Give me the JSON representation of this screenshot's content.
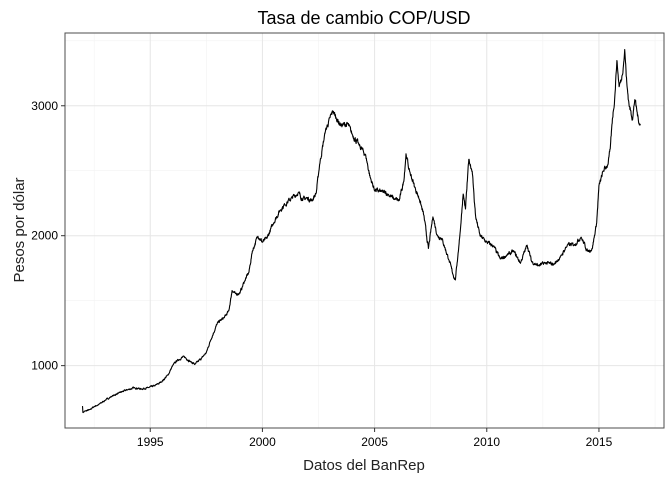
{
  "chart_data": {
    "type": "line",
    "title": "Tasa de cambio COP/USD",
    "xlabel": "Datos del BanRep",
    "ylabel": "Pesos por dólar",
    "xlim": [
      1991.2,
      2017.9
    ],
    "ylim": [
      520,
      3560
    ],
    "x_ticks": [
      1995,
      2000,
      2005,
      2010,
      2015
    ],
    "x_tick_labels": [
      "1995",
      "2000",
      "2005",
      "2010",
      "2015"
    ],
    "y_ticks": [
      1000,
      2000,
      3000
    ],
    "y_tick_labels": [
      "1000",
      "2000",
      "3000"
    ],
    "grid": true,
    "legend": "none",
    "colors": {
      "line": "#000000",
      "grid_major": "#e6e6e6",
      "grid_minor": "#f2f2f2",
      "panel_border": "#4d4d4d"
    },
    "series": [
      {
        "values": [
          {
            "x": 1991.98,
            "y": 690
          },
          {
            "x": 1992.0,
            "y": 640
          },
          {
            "x": 1992.1,
            "y": 650
          },
          {
            "x": 1992.3,
            "y": 660
          },
          {
            "x": 1992.5,
            "y": 685
          },
          {
            "x": 1992.7,
            "y": 700
          },
          {
            "x": 1993.0,
            "y": 735
          },
          {
            "x": 1993.3,
            "y": 765
          },
          {
            "x": 1993.6,
            "y": 790
          },
          {
            "x": 1994.0,
            "y": 815
          },
          {
            "x": 1994.3,
            "y": 830
          },
          {
            "x": 1994.6,
            "y": 820
          },
          {
            "x": 1994.9,
            "y": 830
          },
          {
            "x": 1995.2,
            "y": 845
          },
          {
            "x": 1995.5,
            "y": 875
          },
          {
            "x": 1995.8,
            "y": 930
          },
          {
            "x": 1996.0,
            "y": 1000
          },
          {
            "x": 1996.2,
            "y": 1040
          },
          {
            "x": 1996.5,
            "y": 1070
          },
          {
            "x": 1996.8,
            "y": 1030
          },
          {
            "x": 1997.0,
            "y": 1010
          },
          {
            "x": 1997.3,
            "y": 1060
          },
          {
            "x": 1997.5,
            "y": 1100
          },
          {
            "x": 1997.7,
            "y": 1200
          },
          {
            "x": 1998.0,
            "y": 1330
          },
          {
            "x": 1998.3,
            "y": 1370
          },
          {
            "x": 1998.5,
            "y": 1420
          },
          {
            "x": 1998.65,
            "y": 1580
          },
          {
            "x": 1998.8,
            "y": 1550
          },
          {
            "x": 1999.0,
            "y": 1560
          },
          {
            "x": 1999.2,
            "y": 1650
          },
          {
            "x": 1999.4,
            "y": 1720
          },
          {
            "x": 1999.55,
            "y": 1880
          },
          {
            "x": 1999.8,
            "y": 2000
          },
          {
            "x": 2000.0,
            "y": 1950
          },
          {
            "x": 2000.2,
            "y": 1980
          },
          {
            "x": 2000.5,
            "y": 2100
          },
          {
            "x": 2000.8,
            "y": 2200
          },
          {
            "x": 2001.0,
            "y": 2240
          },
          {
            "x": 2001.3,
            "y": 2290
          },
          {
            "x": 2001.6,
            "y": 2330
          },
          {
            "x": 2001.8,
            "y": 2280
          },
          {
            "x": 2002.0,
            "y": 2290
          },
          {
            "x": 2002.2,
            "y": 2270
          },
          {
            "x": 2002.4,
            "y": 2330
          },
          {
            "x": 2002.55,
            "y": 2550
          },
          {
            "x": 2002.8,
            "y": 2800
          },
          {
            "x": 2003.0,
            "y": 2900
          },
          {
            "x": 2003.15,
            "y": 2960
          },
          {
            "x": 2003.3,
            "y": 2900
          },
          {
            "x": 2003.5,
            "y": 2850
          },
          {
            "x": 2003.8,
            "y": 2860
          },
          {
            "x": 2004.0,
            "y": 2780
          },
          {
            "x": 2004.3,
            "y": 2700
          },
          {
            "x": 2004.6,
            "y": 2620
          },
          {
            "x": 2004.8,
            "y": 2450
          },
          {
            "x": 2005.0,
            "y": 2350
          },
          {
            "x": 2005.3,
            "y": 2340
          },
          {
            "x": 2005.6,
            "y": 2320
          },
          {
            "x": 2005.9,
            "y": 2280
          },
          {
            "x": 2006.1,
            "y": 2270
          },
          {
            "x": 2006.3,
            "y": 2420
          },
          {
            "x": 2006.4,
            "y": 2630
          },
          {
            "x": 2006.55,
            "y": 2500
          },
          {
            "x": 2006.8,
            "y": 2370
          },
          {
            "x": 2007.0,
            "y": 2280
          },
          {
            "x": 2007.2,
            "y": 2150
          },
          {
            "x": 2007.4,
            "y": 1900
          },
          {
            "x": 2007.6,
            "y": 2150
          },
          {
            "x": 2007.8,
            "y": 2000
          },
          {
            "x": 2008.0,
            "y": 1980
          },
          {
            "x": 2008.3,
            "y": 1820
          },
          {
            "x": 2008.5,
            "y": 1700
          },
          {
            "x": 2008.6,
            "y": 1660
          },
          {
            "x": 2008.8,
            "y": 2000
          },
          {
            "x": 2008.95,
            "y": 2320
          },
          {
            "x": 2009.05,
            "y": 2200
          },
          {
            "x": 2009.2,
            "y": 2590
          },
          {
            "x": 2009.35,
            "y": 2500
          },
          {
            "x": 2009.5,
            "y": 2150
          },
          {
            "x": 2009.7,
            "y": 2000
          },
          {
            "x": 2010.0,
            "y": 1950
          },
          {
            "x": 2010.3,
            "y": 1920
          },
          {
            "x": 2010.6,
            "y": 1820
          },
          {
            "x": 2010.9,
            "y": 1850
          },
          {
            "x": 2011.2,
            "y": 1880
          },
          {
            "x": 2011.5,
            "y": 1790
          },
          {
            "x": 2011.8,
            "y": 1930
          },
          {
            "x": 2012.0,
            "y": 1800
          },
          {
            "x": 2012.3,
            "y": 1770
          },
          {
            "x": 2012.6,
            "y": 1790
          },
          {
            "x": 2013.0,
            "y": 1780
          },
          {
            "x": 2013.3,
            "y": 1840
          },
          {
            "x": 2013.6,
            "y": 1930
          },
          {
            "x": 2013.9,
            "y": 1930
          },
          {
            "x": 2014.2,
            "y": 1990
          },
          {
            "x": 2014.5,
            "y": 1880
          },
          {
            "x": 2014.7,
            "y": 1900
          },
          {
            "x": 2014.9,
            "y": 2100
          },
          {
            "x": 2015.0,
            "y": 2380
          },
          {
            "x": 2015.2,
            "y": 2500
          },
          {
            "x": 2015.4,
            "y": 2550
          },
          {
            "x": 2015.5,
            "y": 2660
          },
          {
            "x": 2015.6,
            "y": 2900
          },
          {
            "x": 2015.7,
            "y": 3050
          },
          {
            "x": 2015.8,
            "y": 3350
          },
          {
            "x": 2015.9,
            "y": 3150
          },
          {
            "x": 2016.0,
            "y": 3200
          },
          {
            "x": 2016.08,
            "y": 3300
          },
          {
            "x": 2016.15,
            "y": 3430
          },
          {
            "x": 2016.25,
            "y": 3150
          },
          {
            "x": 2016.35,
            "y": 3000
          },
          {
            "x": 2016.5,
            "y": 2900
          },
          {
            "x": 2016.6,
            "y": 3050
          },
          {
            "x": 2016.75,
            "y": 2900
          },
          {
            "x": 2016.85,
            "y": 2850
          }
        ]
      }
    ]
  }
}
